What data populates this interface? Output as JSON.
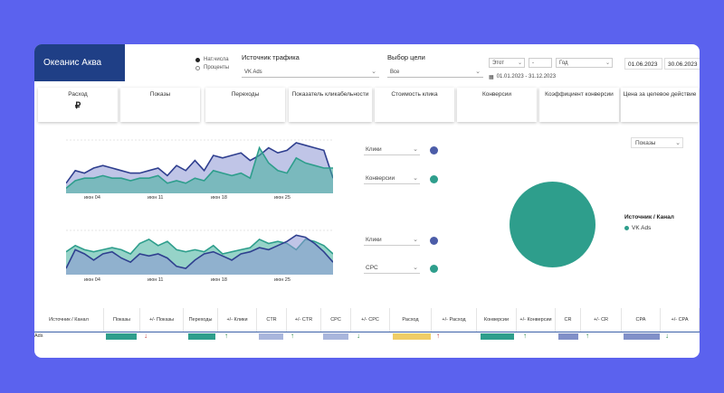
{
  "brand": "Океанис Аква",
  "radio": {
    "opt1": "Нат.числа",
    "opt2": "Проценты"
  },
  "traffic": {
    "label": "Источник трафика",
    "value": "VK Ads"
  },
  "goal": {
    "label": "Выбор цели",
    "value": "Все"
  },
  "period": {
    "type": "Этот",
    "dash": "-",
    "unit": "Год",
    "range": "01.01.2023 - 31.12.2023"
  },
  "dates": {
    "start": "01.06.2023",
    "end": "30.06.2023"
  },
  "kpis": [
    {
      "label": "Расход",
      "value": "₽"
    },
    {
      "label": "Показы",
      "value": ""
    },
    {
      "label": "Переходы",
      "value": ""
    },
    {
      "label": "Показатель кликабельности",
      "value": ""
    },
    {
      "label": "Стоимость клика",
      "value": ""
    },
    {
      "label": "Конверсии",
      "value": ""
    },
    {
      "label": "Коэффициент конверсии",
      "value": ""
    },
    {
      "label": "Цена за целевое действие",
      "value": ""
    }
  ],
  "chart1": {
    "ticks": [
      "июн 04",
      "июн 11",
      "июн 18",
      "июн 25"
    ],
    "sel1": "Клики",
    "sel2": "Конверсии"
  },
  "chart2": {
    "ticks": [
      "июн 04",
      "июн 11",
      "июн 18",
      "июн 25"
    ],
    "sel1": "Клики",
    "sel2": "CPC"
  },
  "pie": {
    "selector": "Показы",
    "legend_title": "Источник / Канал",
    "legend_item": "VK Ads"
  },
  "table": {
    "headers": [
      "Источник / Канал",
      "Показы",
      "+/- Показы",
      "Переходы",
      "+/- Клики",
      "CTR",
      "+/- CTR",
      "CPC",
      "+/- CPC",
      "Расход",
      "+/- Расход",
      "Конверсии",
      "+/- Конверсии",
      "CR",
      "+/- CR",
      "CPA",
      "+/- CPA"
    ],
    "row_label": "Ads"
  },
  "colors": {
    "brand": "#1f3f86",
    "teal": "#2e9e8c",
    "navy": "#3a4fa0",
    "blue": "#5a6fc0"
  },
  "chart_data": [
    {
      "type": "area",
      "x": [
        "июн 01",
        "июн 02",
        "июн 03",
        "июн 04",
        "июн 05",
        "июн 06",
        "июн 07",
        "июн 08",
        "июн 09",
        "июн 10",
        "июн 11",
        "июн 12",
        "июн 13",
        "июн 14",
        "июн 15",
        "июн 16",
        "июн 17",
        "июн 18",
        "июн 19",
        "июн 20",
        "июн 21",
        "июн 22",
        "июн 23",
        "июн 24",
        "июн 25",
        "июн 26",
        "июн 27",
        "июн 28",
        "июн 29",
        "июн 30"
      ],
      "series": [
        {
          "values": [
            0.2,
            0.45,
            0.4,
            0.5,
            0.55,
            0.5,
            0.45,
            0.4,
            0.4,
            0.45,
            0.5,
            0.35,
            0.55,
            0.45,
            0.65,
            0.45,
            0.75,
            0.7,
            0.75,
            0.8,
            0.65,
            0.75,
            0.9,
            0.8,
            0.85,
            1.0,
            0.95,
            0.9,
            0.85,
            0.3
          ]
        },
        {
          "values": [
            0.1,
            0.25,
            0.3,
            0.3,
            0.35,
            0.3,
            0.3,
            0.25,
            0.3,
            0.3,
            0.35,
            0.2,
            0.25,
            0.2,
            0.3,
            0.25,
            0.45,
            0.4,
            0.35,
            0.4,
            0.3,
            0.9,
            0.6,
            0.45,
            0.4,
            0.7,
            0.6,
            0.55,
            0.5,
            0.5
          ]
        }
      ]
    },
    {
      "type": "area",
      "x": [
        "июн 01",
        "июн 02",
        "июн 03",
        "июн 04",
        "июн 05",
        "июн 06",
        "июн 07",
        "июн 08",
        "июн 09",
        "июн 10",
        "июн 11",
        "июн 12",
        "июн 13",
        "июн 14",
        "июн 15",
        "июн 16",
        "июн 17",
        "июн 18",
        "июн 19",
        "июн 20",
        "июн 21",
        "июн 22",
        "июн 23",
        "июн 24",
        "июн 25",
        "июн 26",
        "июн 27",
        "июн 28",
        "июн 29",
        "июн 30"
      ],
      "series": [
        {
          "values": [
            0.55,
            0.7,
            0.6,
            0.55,
            0.6,
            0.65,
            0.6,
            0.5,
            0.75,
            0.85,
            0.7,
            0.8,
            0.6,
            0.55,
            0.6,
            0.55,
            0.7,
            0.5,
            0.55,
            0.6,
            0.65,
            0.85,
            0.75,
            0.8,
            0.75,
            0.6,
            0.85,
            0.8,
            0.7,
            0.5
          ]
        },
        {
          "values": [
            0.15,
            0.6,
            0.5,
            0.35,
            0.5,
            0.55,
            0.4,
            0.3,
            0.5,
            0.45,
            0.5,
            0.4,
            0.2,
            0.15,
            0.35,
            0.5,
            0.55,
            0.45,
            0.35,
            0.5,
            0.55,
            0.65,
            0.6,
            0.7,
            0.8,
            0.95,
            0.9,
            0.75,
            0.55,
            0.3
          ]
        }
      ]
    },
    {
      "type": "pie",
      "categories": [
        "VK Ads"
      ],
      "values": [
        100
      ]
    }
  ]
}
